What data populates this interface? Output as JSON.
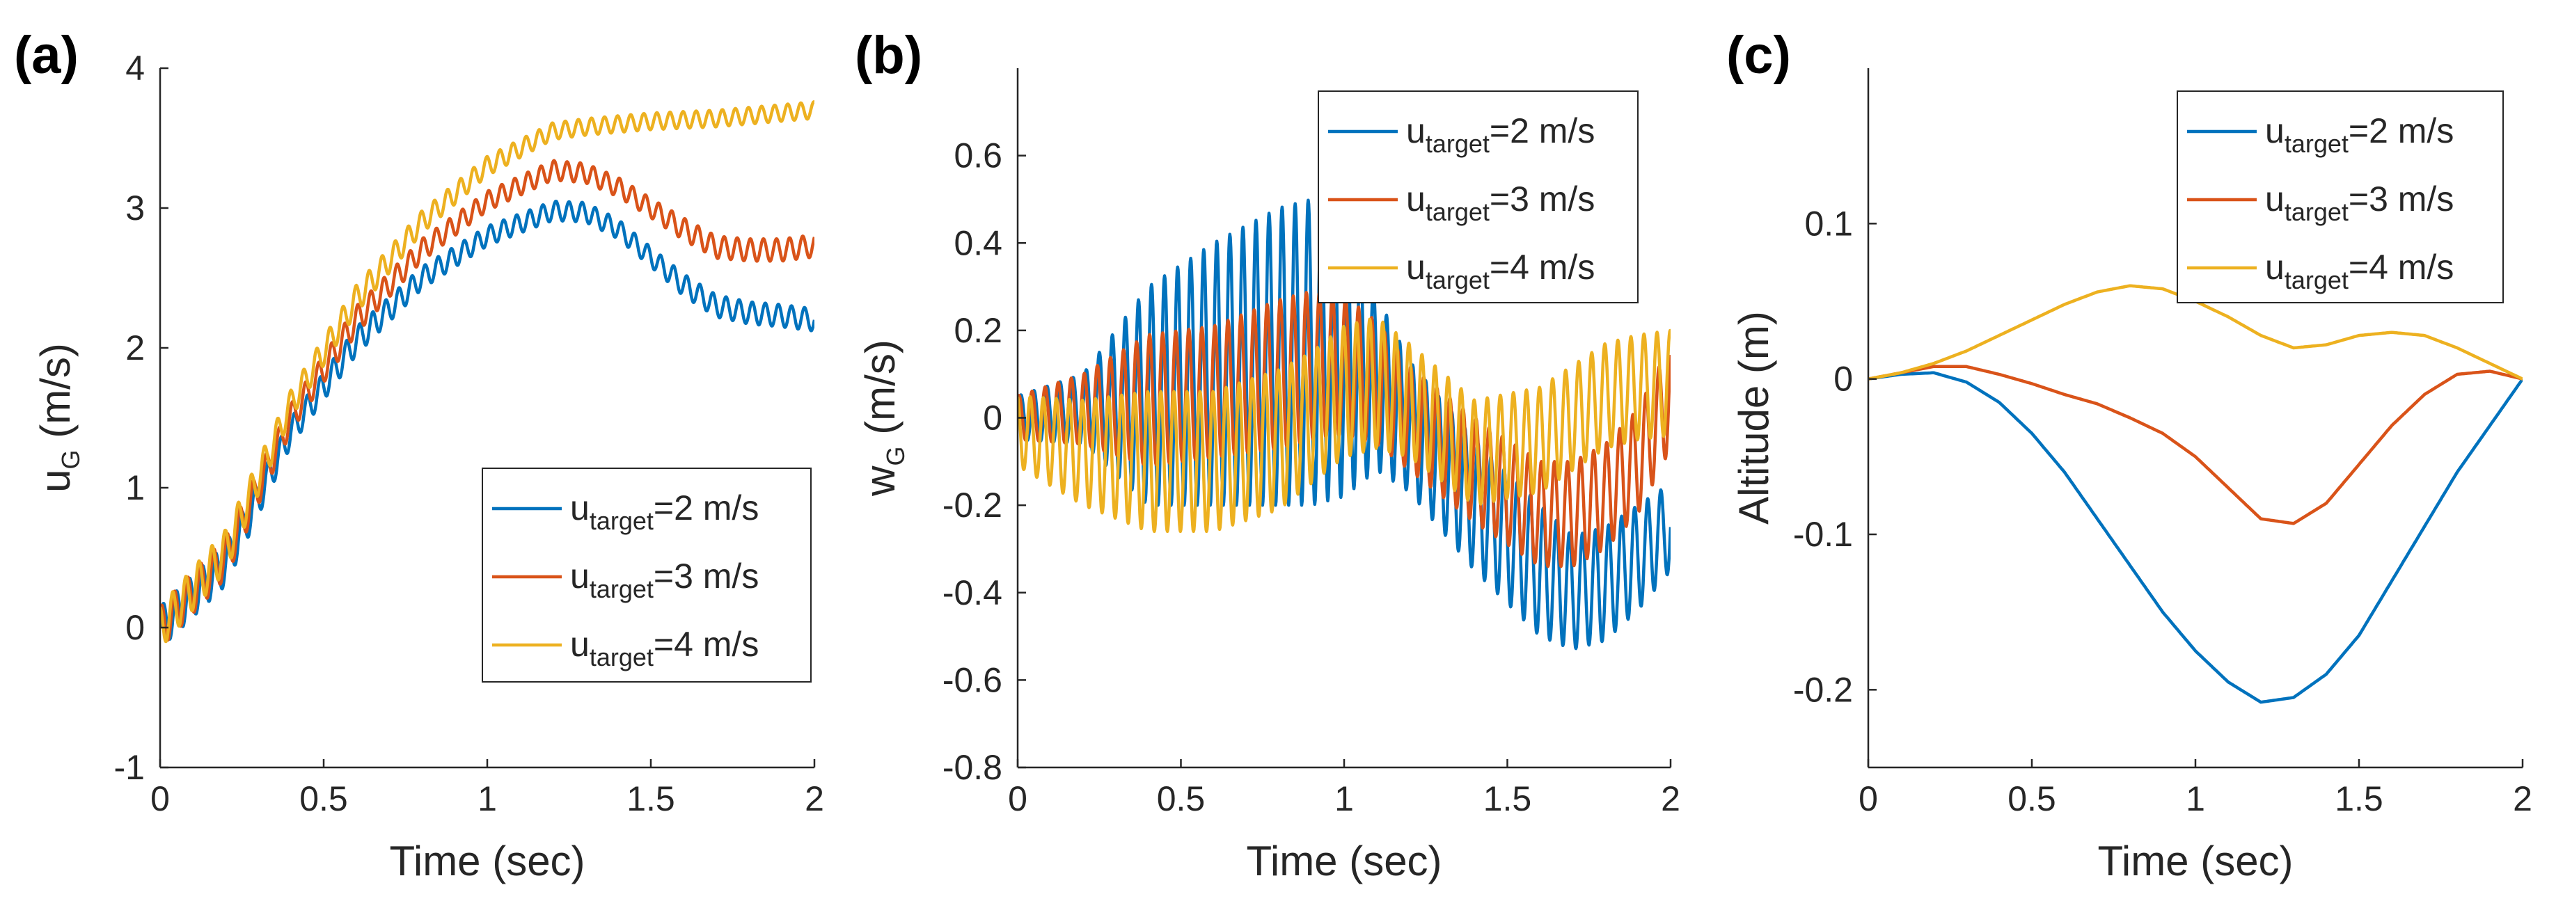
{
  "figure": {
    "panels": [
      "(a)",
      "(b)",
      "(c)"
    ]
  },
  "colors": {
    "series_1": "#0072BD",
    "series_2": "#D95319",
    "series_3": "#EDB120",
    "axis": "#262626"
  },
  "chart_data": [
    {
      "type": "line",
      "panel_label": "(a)",
      "title": "",
      "xlabel": "Time (sec)",
      "ylabel_main": "u",
      "ylabel_sub": "G",
      "ylabel_unit": " (m/s)",
      "xlim": [
        0,
        2
      ],
      "ylim": [
        -1,
        4
      ],
      "xticks": [
        0,
        0.5,
        1,
        1.5,
        2
      ],
      "xtick_labels": [
        "0",
        "0.5",
        "1",
        "1.5",
        "2"
      ],
      "yticks": [
        -1,
        0,
        1,
        2,
        3,
        4
      ],
      "ytick_labels": [
        "-1",
        "0",
        "1",
        "2",
        "3",
        "4"
      ],
      "legend_position": "bottom-right",
      "oscillation": {
        "frequency_hz": 25
      },
      "series": [
        {
          "name": "u_target=2 m/s",
          "legend_main": "u",
          "legend_sub": "target",
          "legend_rest": "=2 m/s",
          "x": [
            0,
            0.2,
            0.4,
            0.6,
            0.8,
            1.0,
            1.2,
            1.3,
            1.4,
            1.5,
            1.6,
            1.7,
            1.8,
            1.9,
            2.0
          ],
          "y": [
            0,
            0.45,
            1.4,
            2.05,
            2.5,
            2.8,
            2.98,
            2.97,
            2.85,
            2.65,
            2.45,
            2.3,
            2.25,
            2.23,
            2.2
          ],
          "amplitude": [
            0.15,
            0.15,
            0.1,
            0.1,
            0.08,
            0.07,
            0.07,
            0.07,
            0.07,
            0.07,
            0.08,
            0.08,
            0.08,
            0.08,
            0.08
          ]
        },
        {
          "name": "u_target=3 m/s",
          "legend_main": "u",
          "legend_sub": "target",
          "legend_rest": "=3 m/s",
          "x": [
            0,
            0.2,
            0.4,
            0.6,
            0.8,
            1.0,
            1.2,
            1.3,
            1.4,
            1.5,
            1.6,
            1.7,
            1.8,
            1.9,
            2.0
          ],
          "y": [
            0,
            0.5,
            1.5,
            2.2,
            2.7,
            3.05,
            3.27,
            3.25,
            3.15,
            3.0,
            2.85,
            2.72,
            2.7,
            2.7,
            2.73
          ],
          "amplitude": [
            0.15,
            0.15,
            0.1,
            0.1,
            0.08,
            0.07,
            0.07,
            0.07,
            0.07,
            0.07,
            0.08,
            0.08,
            0.08,
            0.08,
            0.08
          ]
        },
        {
          "name": "u_target=4 m/s",
          "legend_main": "u",
          "legend_sub": "target",
          "legend_rest": "=4 m/s",
          "x": [
            0,
            0.2,
            0.4,
            0.6,
            0.8,
            1.0,
            1.2,
            1.3,
            1.4,
            1.5,
            1.6,
            1.7,
            1.8,
            1.9,
            2.0
          ],
          "y": [
            0,
            0.55,
            1.6,
            2.35,
            2.9,
            3.3,
            3.55,
            3.58,
            3.6,
            3.62,
            3.63,
            3.64,
            3.66,
            3.68,
            3.7
          ],
          "amplitude": [
            0.15,
            0.15,
            0.1,
            0.1,
            0.08,
            0.07,
            0.06,
            0.06,
            0.06,
            0.06,
            0.06,
            0.06,
            0.06,
            0.06,
            0.06
          ]
        }
      ]
    },
    {
      "type": "line",
      "panel_label": "(b)",
      "title": "",
      "xlabel": "Time (sec)",
      "ylabel_main": "w",
      "ylabel_sub": "G",
      "ylabel_unit": " (m/s)",
      "xlim": [
        0,
        2
      ],
      "ylim": [
        -0.8,
        0.8
      ],
      "xticks": [
        0,
        0.5,
        1,
        1.5,
        2
      ],
      "xtick_labels": [
        "0",
        "0.5",
        "1",
        "1.5",
        "2"
      ],
      "yticks": [
        -0.8,
        -0.6,
        -0.4,
        -0.2,
        0,
        0.2,
        0.4,
        0.6
      ],
      "ytick_labels": [
        "-0.8",
        "-0.6",
        "-0.4",
        "-0.2",
        "0",
        "0.2",
        "0.4",
        "0.6"
      ],
      "legend_position": "top-right",
      "oscillation": {
        "frequency_hz": 25
      },
      "series": [
        {
          "name": "u_target=2 m/s",
          "legend_main": "u",
          "legend_sub": "target",
          "legend_rest": "=2 m/s",
          "x": [
            0,
            0.2,
            0.4,
            0.6,
            0.8,
            0.9,
            1.0,
            1.1,
            1.2,
            1.4,
            1.6,
            1.7,
            1.8,
            1.9,
            2.0
          ],
          "y": [
            0,
            0.02,
            0.05,
            0.1,
            0.14,
            0.15,
            0.14,
            0.08,
            -0.02,
            -0.2,
            -0.35,
            -0.4,
            -0.38,
            -0.32,
            -0.25
          ],
          "amplitude": [
            0.05,
            0.08,
            0.25,
            0.3,
            0.34,
            0.35,
            0.32,
            0.2,
            0.15,
            0.15,
            0.15,
            0.13,
            0.13,
            0.12,
            0.1
          ]
        },
        {
          "name": "u_target=3 m/s",
          "legend_main": "u",
          "legend_sub": "target",
          "legend_rest": "=3 m/s",
          "x": [
            0,
            0.2,
            0.4,
            0.6,
            0.8,
            0.9,
            1.0,
            1.1,
            1.2,
            1.4,
            1.6,
            1.7,
            1.8,
            1.9,
            2.0
          ],
          "y": [
            0,
            0.02,
            0.04,
            0.06,
            0.1,
            0.12,
            0.12,
            0.08,
            0.0,
            -0.12,
            -0.22,
            -0.22,
            -0.18,
            -0.1,
            0.05
          ],
          "amplitude": [
            0.05,
            0.08,
            0.15,
            0.15,
            0.17,
            0.17,
            0.16,
            0.14,
            0.12,
            0.12,
            0.12,
            0.12,
            0.12,
            0.12,
            0.12
          ]
        },
        {
          "name": "u_target=4 m/s",
          "legend_main": "u",
          "legend_sub": "target",
          "legend_rest": "=4 m/s",
          "x": [
            0,
            0.2,
            0.4,
            0.6,
            0.8,
            0.9,
            1.0,
            1.1,
            1.2,
            1.4,
            1.6,
            1.7,
            1.8,
            1.9,
            2.0
          ],
          "y": [
            -0.03,
            -0.08,
            -0.1,
            -0.1,
            -0.05,
            0.0,
            0.06,
            0.08,
            0.04,
            -0.08,
            -0.05,
            0.0,
            0.05,
            0.07,
            0.08
          ],
          "amplitude": [
            0.08,
            0.12,
            0.16,
            0.16,
            0.16,
            0.15,
            0.15,
            0.15,
            0.13,
            0.12,
            0.12,
            0.12,
            0.12,
            0.12,
            0.12
          ]
        }
      ]
    },
    {
      "type": "line",
      "panel_label": "(c)",
      "title": "",
      "xlabel": "Time (sec)",
      "ylabel_main": "Altitude (m)",
      "ylabel_sub": "",
      "ylabel_unit": "",
      "xlim": [
        0,
        2
      ],
      "ylim": [
        -0.25,
        0.2
      ],
      "xticks": [
        0,
        0.5,
        1,
        1.5,
        2
      ],
      "xtick_labels": [
        "0",
        "0.5",
        "1",
        "1.5",
        "2"
      ],
      "yticks": [
        -0.2,
        -0.1,
        0,
        0.1
      ],
      "ytick_labels": [
        "-0.2",
        "-0.1",
        "0",
        "0.1"
      ],
      "legend_position": "top-right",
      "oscillation": {
        "frequency_hz": 0
      },
      "series": [
        {
          "name": "u_target=2 m/s",
          "legend_main": "u",
          "legend_sub": "target",
          "legend_rest": "=2 m/s",
          "x": [
            0,
            0.1,
            0.2,
            0.3,
            0.4,
            0.5,
            0.6,
            0.7,
            0.8,
            0.9,
            1.0,
            1.1,
            1.2,
            1.3,
            1.4,
            1.5,
            1.6,
            1.7,
            1.8,
            1.9,
            2.0
          ],
          "y": [
            0,
            0.003,
            0.004,
            -0.002,
            -0.015,
            -0.035,
            -0.06,
            -0.09,
            -0.12,
            -0.15,
            -0.175,
            -0.195,
            -0.208,
            -0.205,
            -0.19,
            -0.165,
            -0.13,
            -0.095,
            -0.06,
            -0.03,
            0
          ]
        },
        {
          "name": "u_target=3 m/s",
          "legend_main": "u",
          "legend_sub": "target",
          "legend_rest": "=3 m/s",
          "x": [
            0,
            0.1,
            0.2,
            0.3,
            0.4,
            0.5,
            0.6,
            0.7,
            0.8,
            0.9,
            1.0,
            1.1,
            1.2,
            1.3,
            1.4,
            1.5,
            1.6,
            1.7,
            1.8,
            1.9,
            2.0
          ],
          "y": [
            0,
            0.004,
            0.008,
            0.008,
            0.003,
            -0.003,
            -0.01,
            -0.016,
            -0.025,
            -0.035,
            -0.05,
            -0.07,
            -0.09,
            -0.093,
            -0.08,
            -0.055,
            -0.03,
            -0.01,
            0.003,
            0.005,
            0
          ]
        },
        {
          "name": "u_target=4 m/s",
          "legend_main": "u",
          "legend_sub": "target",
          "legend_rest": "=4 m/s",
          "x": [
            0,
            0.1,
            0.2,
            0.3,
            0.4,
            0.5,
            0.6,
            0.7,
            0.8,
            0.9,
            1.0,
            1.1,
            1.2,
            1.3,
            1.4,
            1.5,
            1.6,
            1.7,
            1.8,
            1.9,
            2.0
          ],
          "y": [
            0,
            0.004,
            0.01,
            0.018,
            0.028,
            0.038,
            0.048,
            0.056,
            0.06,
            0.058,
            0.05,
            0.04,
            0.028,
            0.02,
            0.022,
            0.028,
            0.03,
            0.028,
            0.02,
            0.01,
            0
          ]
        }
      ]
    }
  ]
}
